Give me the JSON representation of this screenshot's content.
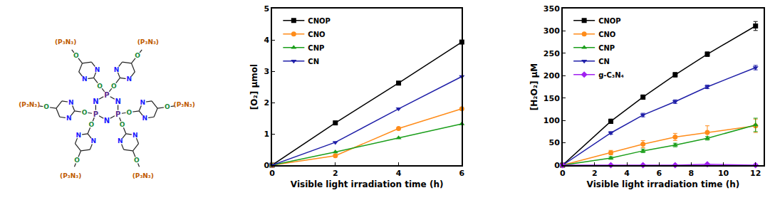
{
  "diagram": {
    "ring_atoms": [
      "P",
      "N"
    ],
    "linker": "O",
    "pyrimidine_atom": "N",
    "terminal": "(P₃N₃)"
  },
  "chart_data": [
    {
      "type": "line",
      "x_label": "Visible light irradiation time (h)",
      "y_label": "[O₂] μmol",
      "x": [
        0,
        2,
        4,
        6
      ],
      "series": [
        {
          "name": "CNOP",
          "color": "#000000",
          "marker": "square",
          "values": [
            0,
            1.35,
            2.62,
            3.93
          ]
        },
        {
          "name": "CNO",
          "color": "#ff8c1a",
          "marker": "circle",
          "values": [
            0,
            0.3,
            1.17,
            1.8
          ]
        },
        {
          "name": "CNP",
          "color": "#1a9e1a",
          "marker": "triangle-up",
          "values": [
            0,
            0.42,
            0.87,
            1.32
          ]
        },
        {
          "name": "CN",
          "color": "#1f1fa8",
          "marker": "triangle-down",
          "values": [
            0,
            0.73,
            1.8,
            2.83
          ]
        }
      ],
      "xlim": [
        0,
        6
      ],
      "xticks": [
        0,
        2,
        4,
        6
      ],
      "ylim": [
        0,
        5
      ],
      "yticks": [
        0,
        1,
        2,
        3,
        4,
        5
      ],
      "legend": "upper left",
      "grid": false
    },
    {
      "type": "line",
      "x_label": "Visible light irradiation time (h)",
      "y_label": "[H₂O₂] μM",
      "x": [
        0,
        3,
        5,
        7,
        9,
        12
      ],
      "series": [
        {
          "name": "CNOP",
          "color": "#000000",
          "marker": "square",
          "values": [
            0,
            98,
            152,
            202,
            248,
            311
          ],
          "errors": [
            0,
            5,
            5,
            5,
            5,
            10
          ]
        },
        {
          "name": "CNO",
          "color": "#ff8c1a",
          "marker": "circle",
          "values": [
            0,
            28,
            47,
            63,
            73,
            88
          ],
          "errors": [
            0,
            5,
            8,
            8,
            15,
            15
          ]
        },
        {
          "name": "CNP",
          "color": "#1a9e1a",
          "marker": "triangle-up",
          "values": [
            0,
            16,
            32,
            45,
            60,
            90
          ],
          "errors": [
            0,
            3,
            4,
            4,
            4,
            15
          ]
        },
        {
          "name": "CN",
          "color": "#1f1fa8",
          "marker": "triangle-down",
          "values": [
            0,
            72,
            112,
            142,
            175,
            218
          ],
          "errors": [
            0,
            3,
            4,
            4,
            4,
            5
          ]
        },
        {
          "name": "g-C₃N₄",
          "color": "#a020f0",
          "marker": "diamond",
          "values": [
            0,
            0,
            0,
            0,
            2,
            0
          ],
          "errors": [
            0,
            0,
            0,
            0,
            2,
            0
          ]
        }
      ],
      "xlim": [
        0,
        12.5
      ],
      "xticks": [
        0,
        2,
        4,
        6,
        8,
        10,
        12
      ],
      "ylim": [
        0,
        350
      ],
      "yticks": [
        0,
        50,
        100,
        150,
        200,
        250,
        300,
        350
      ],
      "legend": "upper left",
      "grid": false
    }
  ]
}
